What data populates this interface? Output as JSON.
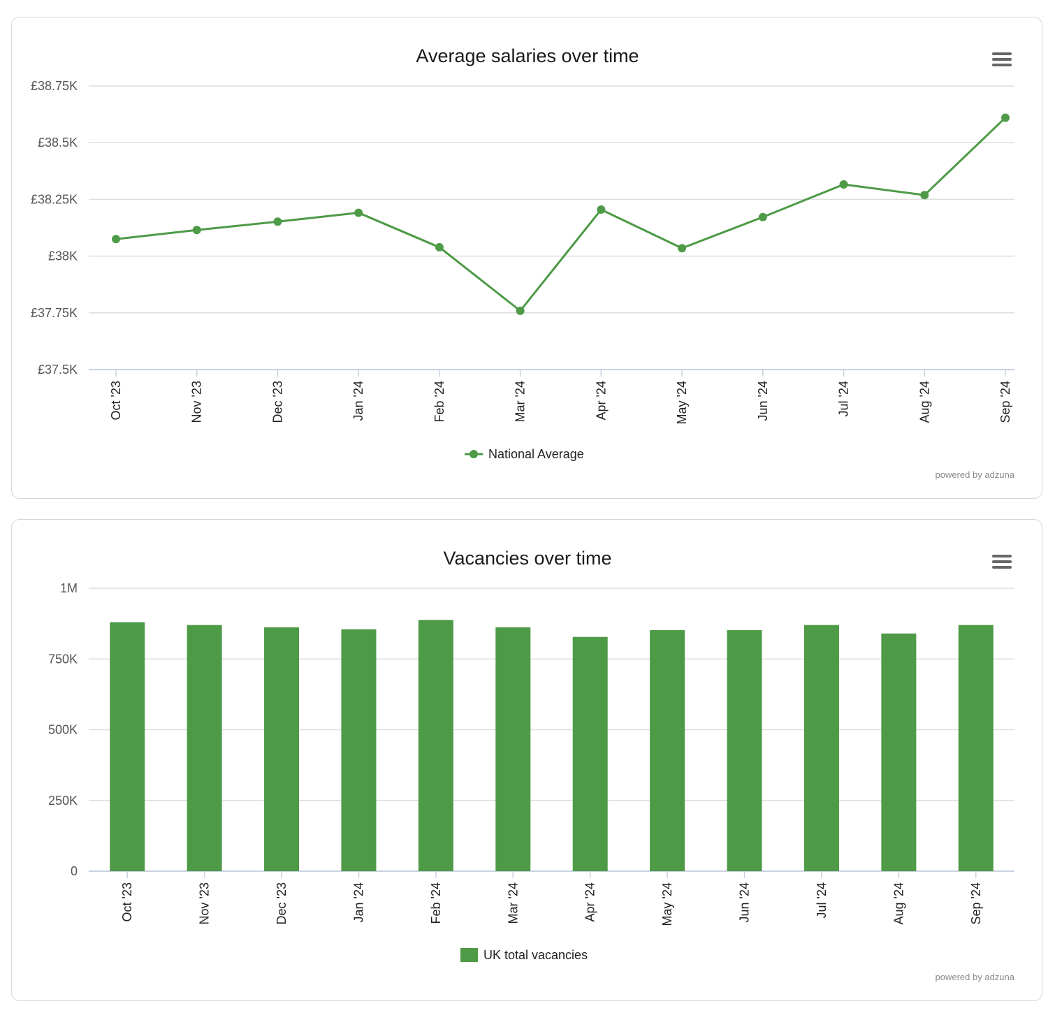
{
  "colors": {
    "accent": "#4e9a47",
    "grid": "#dedede",
    "axis": "#c8d2e0",
    "menu_icon": "#666666"
  },
  "icons": {
    "menu": "hamburger-menu-icon"
  },
  "chart_data": [
    {
      "type": "line",
      "title": "Average salaries over time",
      "categories": [
        "Oct '23",
        "Nov '23",
        "Dec '23",
        "Jan '24",
        "Feb '24",
        "Mar '24",
        "Apr '24",
        "May '24",
        "Jun '24",
        "Jul '24",
        "Aug '24",
        "Sep '24"
      ],
      "series": [
        {
          "name": "National Average",
          "values": [
            38075,
            38115,
            38152,
            38191,
            38039,
            37759,
            38205,
            38035,
            38172,
            38316,
            38269,
            38610
          ]
        }
      ],
      "ylim": [
        37500,
        38750
      ],
      "yticks": [
        37500,
        37750,
        38000,
        38250,
        38500,
        38750
      ],
      "ytick_labels": [
        "£37.5K",
        "£37.75K",
        "£38K",
        "£38.25K",
        "£38.5K",
        "£38.75K"
      ],
      "grid": true,
      "legend": "bottom-center",
      "credit": "powered by adzuna"
    },
    {
      "type": "bar",
      "title": "Vacancies over time",
      "categories": [
        "Oct '23",
        "Nov '23",
        "Dec '23",
        "Jan '24",
        "Feb '24",
        "Mar '24",
        "Apr '24",
        "May '24",
        "Jun '24",
        "Jul '24",
        "Aug '24",
        "Sep '24"
      ],
      "series": [
        {
          "name": "UK total vacancies",
          "values": [
            880000,
            870000,
            862000,
            855000,
            888000,
            862000,
            828000,
            852000,
            852000,
            870000,
            840000,
            870000
          ]
        }
      ],
      "ylim": [
        0,
        1000000
      ],
      "yticks": [
        0,
        250000,
        500000,
        750000,
        1000000
      ],
      "ytick_labels": [
        "0",
        "250K",
        "500K",
        "750K",
        "1M"
      ],
      "grid": true,
      "legend": "bottom-center",
      "credit": "powered by adzuna"
    }
  ]
}
